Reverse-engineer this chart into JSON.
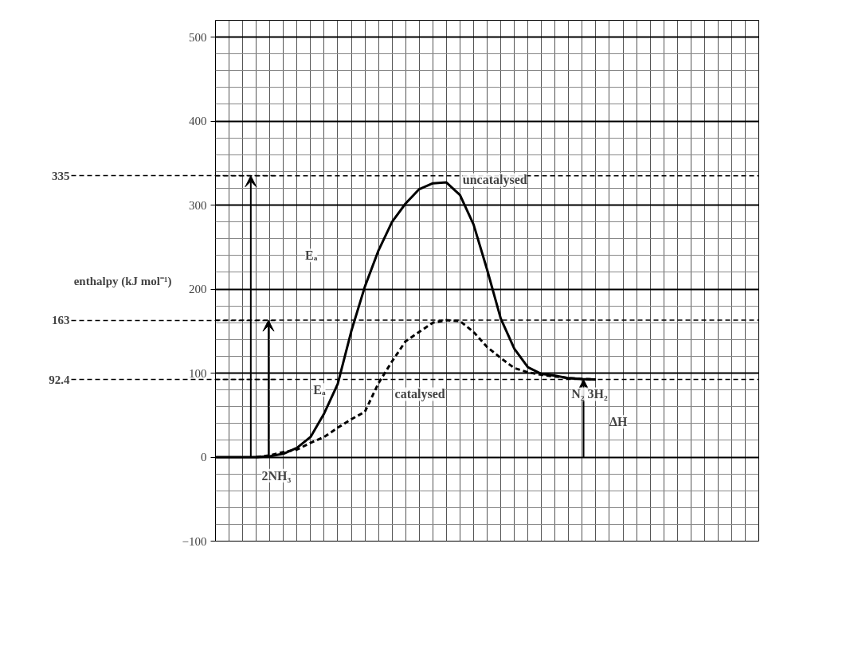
{
  "chart_data": {
    "type": "line",
    "ylabel": "enthalpy (kJ mol⁻¹)",
    "categories": [
      null,
      null,
      null,
      null,
      null,
      null,
      null,
      null,
      null,
      null,
      null,
      null,
      null,
      null,
      null,
      null,
      null,
      null,
      null,
      null,
      null,
      null,
      null,
      null,
      null,
      null,
      null,
      null,
      null,
      null,
      null,
      null,
      null,
      null,
      null,
      null,
      null,
      null,
      null,
      null,
      null
    ],
    "ylim": [
      -100,
      520
    ],
    "yticks": [
      -100,
      0,
      100,
      200,
      300,
      400,
      500
    ],
    "tick_labels": "y",
    "grid": true,
    "series": [
      {
        "color": "#000000",
        "line_style": "solid",
        "values": [
          0,
          0,
          0,
          0,
          1,
          4,
          11,
          24,
          52,
          87,
          150,
          203,
          246,
          280,
          302,
          319,
          326,
          327,
          312,
          277,
          223,
          165,
          129,
          107,
          99,
          97,
          94,
          93,
          92.4,
          null,
          null,
          null,
          null,
          null,
          null,
          null,
          null,
          null,
          null,
          null,
          null
        ]
      },
      {
        "color": "#000000",
        "line_style": "dashed",
        "values": [
          null,
          null,
          null,
          0,
          2,
          6,
          9,
          17,
          24,
          35,
          45,
          54,
          88,
          114,
          138,
          149,
          160,
          163,
          162,
          149,
          131,
          118,
          106,
          101,
          98,
          96,
          94,
          93,
          92.4,
          null,
          null,
          null,
          null,
          null,
          null,
          null,
          null,
          null,
          null,
          null,
          null
        ]
      }
    ],
    "ref_lines": [
      {
        "axis": "y",
        "value": 335,
        "label": "335",
        "line_style": "dashed",
        "color": "#000000"
      },
      {
        "axis": "y",
        "value": 163,
        "label": "163",
        "line_style": "dashed",
        "color": "#000000"
      },
      {
        "axis": "y",
        "value": 92.4,
        "label": "92.4",
        "line_style": "dashed",
        "color": "#000000"
      }
    ],
    "annotations": [
      "uncatalysed",
      "catalysed",
      "Eₐ",
      "Eₐ",
      "2NH₃",
      "N₂ 3H₂",
      "ΔH"
    ]
  }
}
